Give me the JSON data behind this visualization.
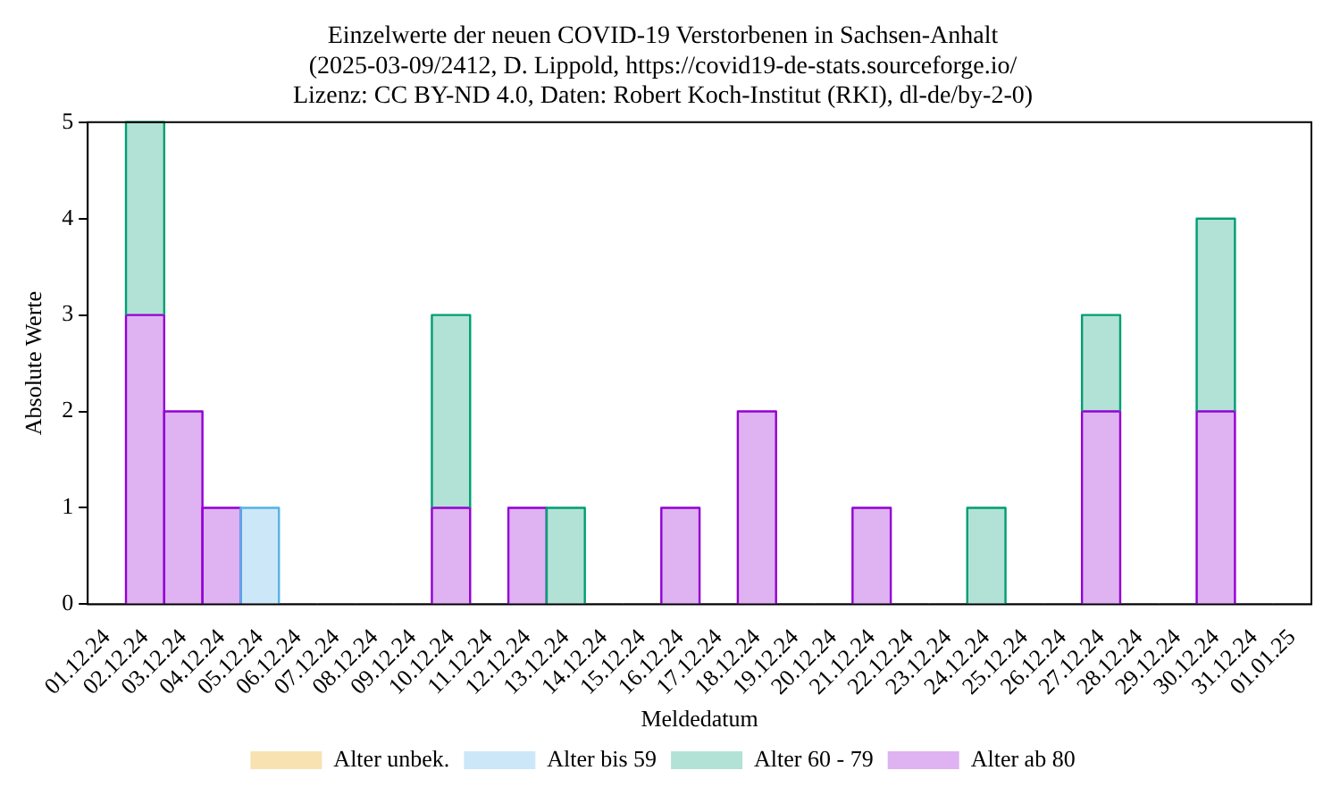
{
  "chart_data": {
    "type": "bar",
    "title": [
      "Einzelwerte der neuen COVID-19 Verstorbenen in Sachsen-Anhalt",
      "(2025-03-09/2412, D. Lippold, https://covid19-de-stats.sourceforge.io/",
      "Lizenz: CC BY-ND 4.0, Daten: Robert Koch-Institut (RKI), dl-de/by-2-0)"
    ],
    "xlabel": "Meldedatum",
    "ylabel": "Absolute Werte",
    "stacked": true,
    "grid": false,
    "legend": "bottom",
    "categories": [
      "01.12.24",
      "02.12.24",
      "03.12.24",
      "04.12.24",
      "05.12.24",
      "06.12.24",
      "07.12.24",
      "08.12.24",
      "09.12.24",
      "10.12.24",
      "11.12.24",
      "12.12.24",
      "13.12.24",
      "14.12.24",
      "15.12.24",
      "16.12.24",
      "17.12.24",
      "18.12.24",
      "19.12.24",
      "20.12.24",
      "21.12.24",
      "22.12.24",
      "23.12.24",
      "24.12.24",
      "25.12.24",
      "26.12.24",
      "27.12.24",
      "28.12.24",
      "29.12.24",
      "30.12.24",
      "31.12.24",
      "01.01.25"
    ],
    "ylim": [
      0,
      5
    ],
    "yticks": [
      0,
      1,
      2,
      3,
      4,
      5
    ],
    "series": [
      {
        "name": "Alter ab 80",
        "color": "#dfb2f2",
        "values": [
          0,
          3,
          2,
          1,
          0,
          0,
          0,
          0,
          0,
          1,
          0,
          1,
          0,
          0,
          0,
          1,
          0,
          2,
          0,
          0,
          1,
          0,
          0,
          0,
          0,
          0,
          2,
          0,
          0,
          2,
          0,
          0
        ]
      },
      {
        "name": "Alter 60 - 79",
        "color": "#b2e2d5",
        "values": [
          0,
          2,
          0,
          0,
          0,
          0,
          0,
          0,
          0,
          2,
          0,
          0,
          1,
          0,
          0,
          0,
          0,
          0,
          0,
          0,
          0,
          0,
          0,
          1,
          0,
          0,
          1,
          0,
          0,
          2,
          0,
          0
        ]
      },
      {
        "name": "Alter bis 59",
        "color": "#cce8f8",
        "values": [
          0,
          0,
          0,
          0,
          1,
          0,
          0,
          0,
          0,
          0,
          0,
          0,
          0,
          0,
          0,
          0,
          0,
          0,
          0,
          0,
          0,
          0,
          0,
          0,
          0,
          0,
          0,
          0,
          0,
          0,
          0,
          0
        ]
      },
      {
        "name": "Alter unbek.",
        "color": "#f8e2b2",
        "values": [
          0,
          0,
          0,
          0,
          0,
          0,
          0,
          0,
          0,
          0,
          0,
          0,
          0,
          0,
          0,
          0,
          0,
          0,
          0,
          0,
          0,
          0,
          0,
          0,
          0,
          0,
          0,
          0,
          0,
          0,
          0,
          0
        ]
      }
    ]
  }
}
